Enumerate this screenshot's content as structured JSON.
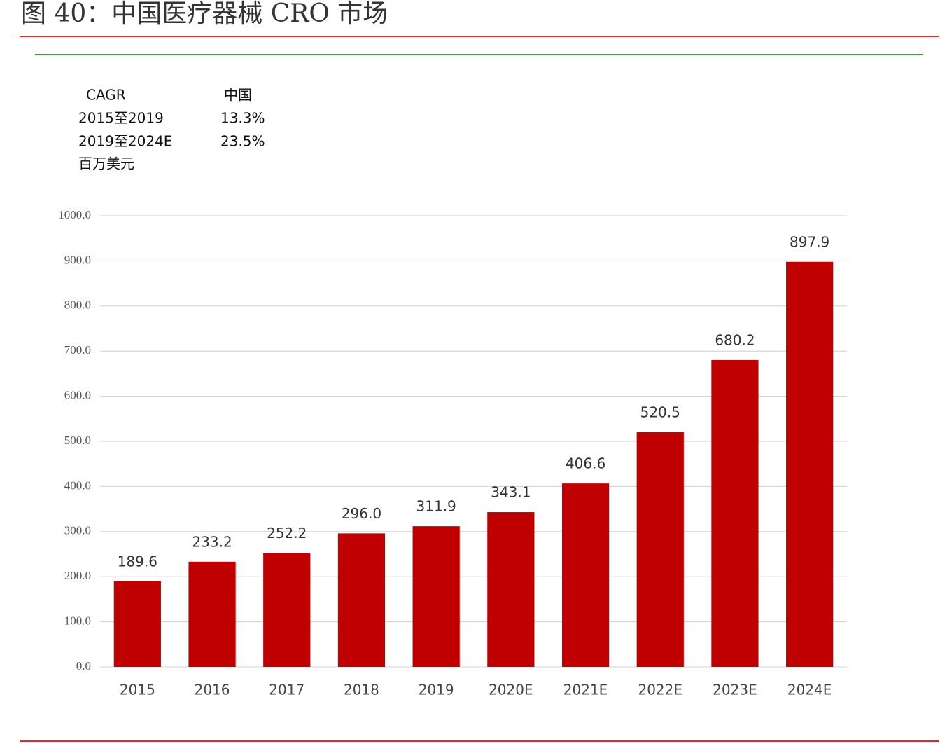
{
  "chart_data": {
    "type": "bar",
    "title": "图 40：中国医疗器械 CRO 市场",
    "cagr_table": {
      "header": [
        "CAGR",
        "中国"
      ],
      "rows": [
        [
          "2015至2019",
          "13.3%"
        ],
        [
          "2019至2024E",
          "23.5%"
        ]
      ]
    },
    "unit": "百万美元",
    "categories": [
      "2015",
      "2016",
      "2017",
      "2018",
      "2019",
      "2020E",
      "2021E",
      "2022E",
      "2023E",
      "2024E"
    ],
    "values": [
      189.6,
      233.2,
      252.2,
      296.0,
      311.9,
      343.1,
      406.6,
      520.5,
      680.2,
      897.9
    ],
    "value_labels": [
      "189.6",
      "233.2",
      "252.2",
      "296.0",
      "311.9",
      "343.1",
      "406.6",
      "520.5",
      "680.2",
      "897.9"
    ],
    "color": "#c00000",
    "ylim": [
      0,
      1000
    ],
    "yticks": [
      {
        "value": 0,
        "label": "0.0"
      },
      {
        "value": 100,
        "label": "100.0"
      },
      {
        "value": 200,
        "label": "200.0"
      },
      {
        "value": 300,
        "label": "300.0"
      },
      {
        "value": 400,
        "label": "400.0"
      },
      {
        "value": 500,
        "label": "500.0"
      },
      {
        "value": 600,
        "label": "600.0"
      },
      {
        "value": 700,
        "label": "700.0"
      },
      {
        "value": 800,
        "label": "800.0"
      },
      {
        "value": 900,
        "label": "900.0"
      },
      {
        "value": 1000,
        "label": "1000.0"
      }
    ],
    "grid": true
  }
}
